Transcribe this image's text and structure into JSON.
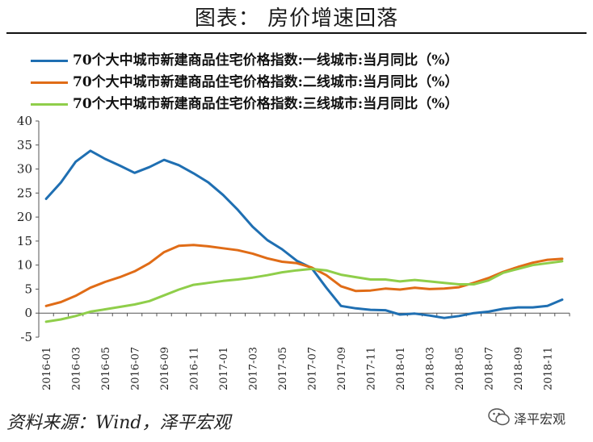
{
  "page": {
    "title": "图表：  房价增速回落"
  },
  "source": "资料来源：Wind，泽平宏观",
  "watermark": {
    "text": "泽平宏观",
    "icon": "wechat-icon"
  },
  "colors": {
    "series": [
      "#1f6fb2",
      "#e06c17",
      "#8fce4a"
    ],
    "axis": "#555555",
    "text": "#222222"
  },
  "chart_data": {
    "type": "line",
    "title": "房价增速回落",
    "xlabel": "",
    "ylabel": "",
    "ylim": [
      -5,
      40
    ],
    "yticks": [
      "40",
      "35",
      "30",
      "25",
      "20",
      "15",
      "10",
      "5",
      "0",
      "-5"
    ],
    "grid": false,
    "legend_position": "top-left",
    "x": [
      "2016-01",
      "2016-02",
      "2016-03",
      "2016-04",
      "2016-05",
      "2016-06",
      "2016-07",
      "2016-08",
      "2016-09",
      "2016-10",
      "2016-11",
      "2016-12",
      "2017-01",
      "2017-02",
      "2017-03",
      "2017-04",
      "2017-05",
      "2017-06",
      "2017-07",
      "2017-08",
      "2017-09",
      "2017-10",
      "2017-11",
      "2017-12",
      "2018-01",
      "2018-02",
      "2018-03",
      "2018-04",
      "2018-05",
      "2018-06",
      "2018-07",
      "2018-08",
      "2018-09",
      "2018-10",
      "2018-11",
      "2018-12"
    ],
    "xtick_labels": [
      "2016-01",
      "2016-03",
      "2016-05",
      "2016-07",
      "2016-09",
      "2016-11",
      "2017-01",
      "2017-03",
      "2017-05",
      "2017-07",
      "2017-09",
      "2017-11",
      "2018-01",
      "2018-03",
      "2018-05",
      "2018-07",
      "2018-09",
      "2018-11"
    ],
    "series": [
      {
        "name": "70个大中城市新建商品住宅价格指数:一线城市:当月同比（%）",
        "values": [
          23.8,
          27.2,
          31.5,
          33.8,
          32.1,
          30.7,
          29.2,
          30.4,
          31.9,
          30.8,
          29.1,
          27.2,
          24.6,
          21.5,
          18.0,
          15.2,
          13.3,
          10.9,
          9.4,
          5.3,
          1.5,
          1.0,
          0.7,
          0.6,
          -0.3,
          -0.1,
          -0.5,
          -1.0,
          -0.6,
          0.0,
          0.3,
          0.9,
          1.2,
          1.2,
          1.5,
          2.8
        ]
      },
      {
        "name": "70个大中城市新建商品住宅价格指数:二线城市:当月同比（%）",
        "values": [
          1.5,
          2.3,
          3.6,
          5.3,
          6.5,
          7.5,
          8.7,
          10.4,
          12.7,
          14.0,
          14.2,
          13.9,
          13.5,
          13.1,
          12.4,
          11.4,
          10.7,
          10.4,
          9.5,
          7.9,
          5.6,
          4.6,
          4.7,
          5.1,
          4.9,
          5.3,
          5.0,
          5.1,
          5.4,
          6.3,
          7.3,
          8.6,
          9.6,
          10.5,
          11.1,
          11.3
        ]
      },
      {
        "name": "70个大中城市新建商品住宅价格指数:三线城市:当月同比（%）",
        "values": [
          -1.8,
          -1.3,
          -0.6,
          0.3,
          0.8,
          1.3,
          1.8,
          2.5,
          3.7,
          4.9,
          5.9,
          6.3,
          6.7,
          7.0,
          7.4,
          7.9,
          8.5,
          8.9,
          9.2,
          8.9,
          8.0,
          7.5,
          7.0,
          7.0,
          6.6,
          6.9,
          6.6,
          6.3,
          6.0,
          6.0,
          6.8,
          8.4,
          9.2,
          10.0,
          10.4,
          10.8
        ]
      }
    ]
  }
}
